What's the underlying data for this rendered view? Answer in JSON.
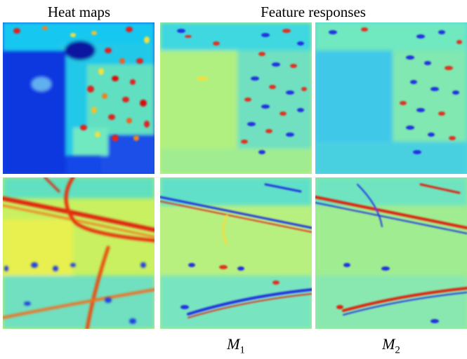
{
  "figure": {
    "header_left": "Heat maps",
    "header_right": "Feature responses",
    "captions": [
      {
        "var": "M",
        "sub": "1"
      },
      {
        "var": "M",
        "sub": "2"
      }
    ]
  },
  "colormap": {
    "low": "#0a14d8",
    "mid_low": "#17b8f0",
    "mid": "#7fe8b0",
    "mid_high": "#f2e63c",
    "high": "#d8140a"
  }
}
